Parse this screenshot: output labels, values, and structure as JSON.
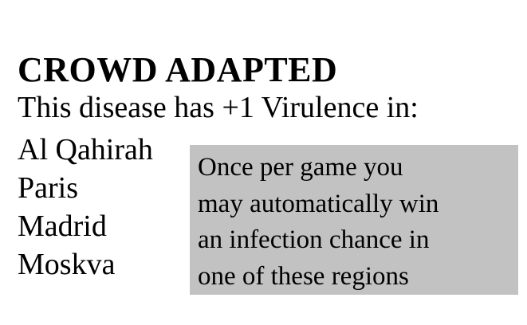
{
  "card": {
    "title": "CROWD ADAPTED",
    "subtitle": "This disease has +1 Virulence in:",
    "cities": [
      "Al Qahirah",
      "Paris",
      "Madrid",
      "Moskva"
    ],
    "note_lines": [
      "Once per game you",
      "may automatically win",
      "an infection chance in",
      "one of these regions"
    ],
    "colors": {
      "background": "#ffffff",
      "note_background": "#c2c2c2",
      "text": "#000000"
    }
  }
}
